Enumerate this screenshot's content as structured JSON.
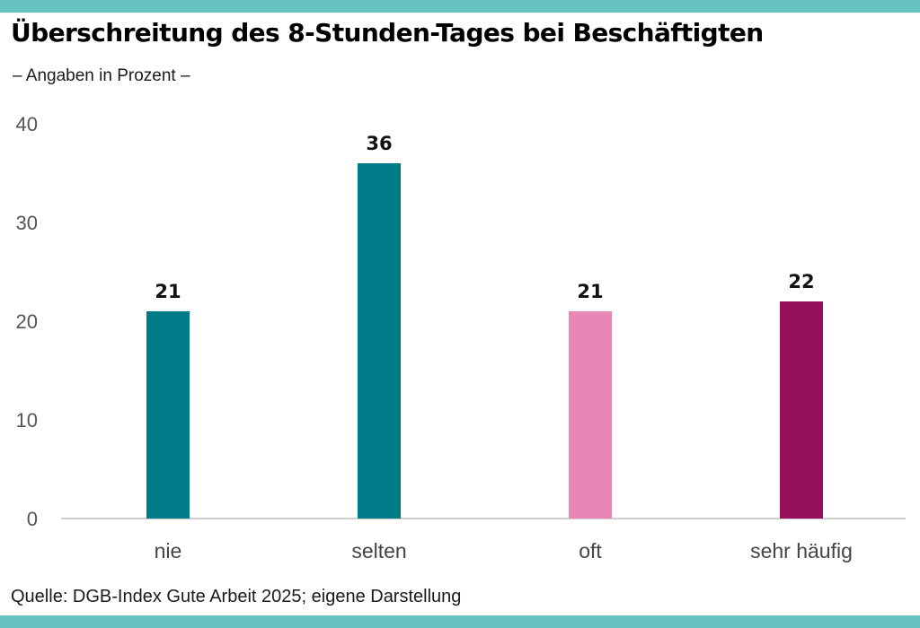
{
  "header": {
    "title": "Überschreitung des 8-Stunden-Tages bei Beschäftigten",
    "subtitle": "– Angaben in Prozent  –"
  },
  "footer": {
    "source": "Quelle: DGB-Index Gute Arbeit 2025; eigene Darstellung"
  },
  "colors": {
    "band": "#67c2c2",
    "axis": "#cfcfcf"
  },
  "chart_data": {
    "type": "bar",
    "title": "Überschreitung des 8-Stunden-Tages bei Beschäftigten",
    "subtitle": "Angaben in Prozent",
    "categories": [
      "nie",
      "selten",
      "oft",
      "sehr häufig"
    ],
    "values": [
      21,
      36,
      21,
      22
    ],
    "bar_colors": [
      "#007c89",
      "#007c89",
      "#e887b5",
      "#960f5a"
    ],
    "xlabel": "",
    "ylabel": "",
    "ylim": [
      0,
      40
    ],
    "yticks": [
      0,
      10,
      20,
      30,
      40
    ],
    "grid": false,
    "legend": "none",
    "data_labels": true
  }
}
